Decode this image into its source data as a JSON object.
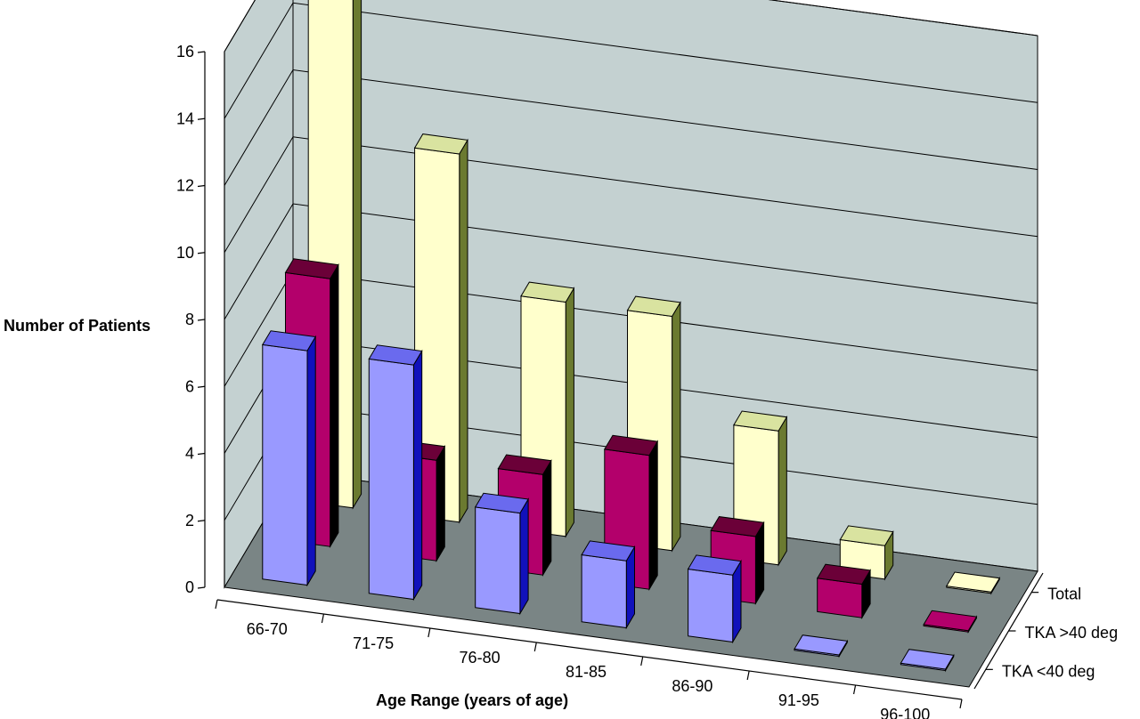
{
  "chart_data": {
    "type": "bar",
    "projection": "3d-depth",
    "title": "",
    "xlabel": "Age Range (years of age)",
    "ylabel": "Number of Patients",
    "ylim": [
      0,
      16
    ],
    "yticks": [
      "0",
      "2",
      "4",
      "6",
      "8",
      "10",
      "12",
      "14",
      "16"
    ],
    "grid": true,
    "legend_position": "right",
    "categories": [
      "66-70",
      "71-75",
      "76-80",
      "81-85",
      "86-90",
      "91-95",
      "96-100"
    ],
    "series": [
      {
        "name": "TKA <40 deg",
        "values": [
          7,
          7,
          3,
          2,
          2,
          0,
          0
        ],
        "colors": {
          "front": "#9999ff",
          "side": "#1111bb",
          "top": "#6a6aee"
        }
      },
      {
        "name": "TKA >40 deg",
        "values": [
          8,
          3,
          3,
          4,
          2,
          1,
          0
        ],
        "colors": {
          "front": "#b3006b",
          "side": "#000000",
          "top": "#6b0038"
        }
      },
      {
        "name": "Total",
        "values": [
          16,
          11,
          7,
          7,
          4,
          1,
          0
        ],
        "colors": {
          "front": "#ffffcc",
          "side": "#6b7a30",
          "top": "#d9e3a0"
        }
      }
    ],
    "colors": {
      "wall": "#c4d1d1",
      "floor": "#7a8585"
    }
  }
}
